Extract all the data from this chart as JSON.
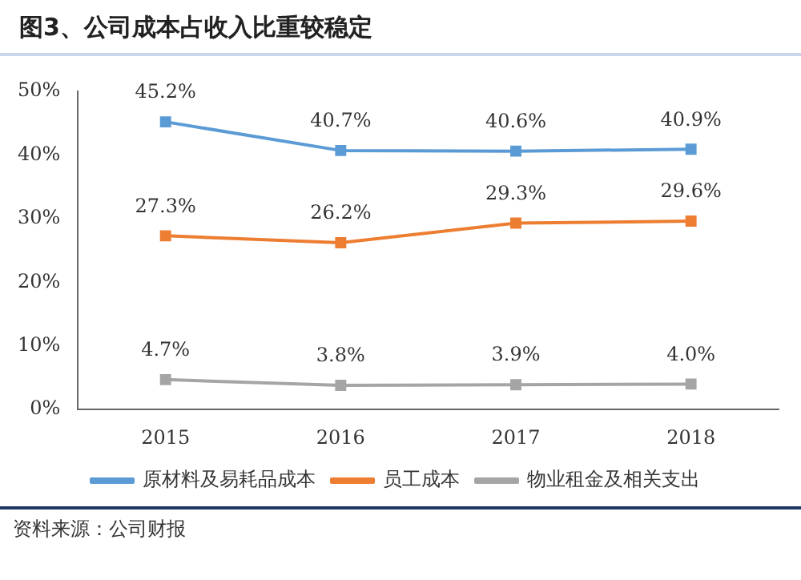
{
  "chart_data": {
    "type": "line",
    "title": "图3、公司成本占收入比重较稳定",
    "categories": [
      "2015",
      "2016",
      "2017",
      "2018"
    ],
    "series": [
      {
        "name": "原材料及易耗品成本",
        "color": "#5b9bd5",
        "values": [
          45.2,
          40.7,
          40.6,
          40.9
        ],
        "value_labels": [
          "45.2%",
          "40.7%",
          "40.6%",
          "40.9%"
        ]
      },
      {
        "name": "员工成本",
        "color": "#ed7d31",
        "values": [
          27.3,
          26.2,
          29.3,
          29.6
        ],
        "value_labels": [
          "27.3%",
          "26.2%",
          "29.3%",
          "29.6%"
        ]
      },
      {
        "name": "物业租金及相关支出",
        "color": "#a5a5a5",
        "values": [
          4.7,
          3.8,
          3.9,
          4.0
        ],
        "value_labels": [
          "4.7%",
          "3.8%",
          "3.9%",
          "4.0%"
        ]
      }
    ],
    "ylim": [
      0,
      50
    ],
    "yticks": [
      {
        "value": 0,
        "label": "0%"
      },
      {
        "value": 10,
        "label": "10%"
      },
      {
        "value": 20,
        "label": "20%"
      },
      {
        "value": 30,
        "label": "30%"
      },
      {
        "value": 40,
        "label": "40%"
      },
      {
        "value": 50,
        "label": "50%"
      }
    ],
    "grid": false,
    "legend": "bottom",
    "marker": "square",
    "line_style": "solid",
    "annotations": [
      "资料来源：公司财报"
    ]
  }
}
